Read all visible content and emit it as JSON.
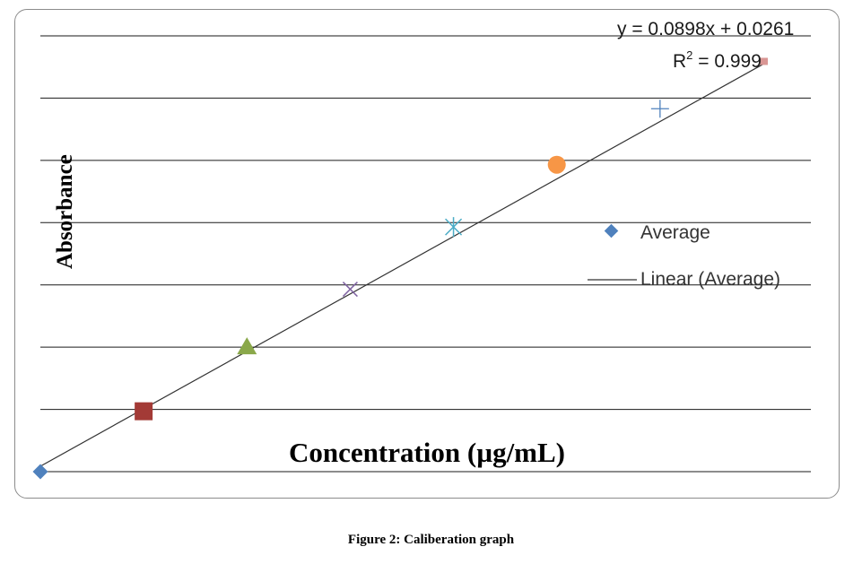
{
  "chart_data": {
    "type": "scatter",
    "xlabel": "Concentration (µg/mL)",
    "ylabel": "Absorbance",
    "grid": true,
    "legend_placement": "right",
    "series": [
      {
        "name": "Average",
        "x": [
          0,
          1,
          2,
          3,
          4,
          5,
          6,
          7
        ],
        "y": [
          0.0,
          0.097,
          0.2,
          0.293,
          0.393,
          0.493,
          0.583,
          0.659
        ],
        "colors": [
          "#4f81bd",
          "#a33a36",
          "#8aa84a",
          "#8064a2",
          "#4bacc6",
          "#f79646",
          "#4f81bd",
          "#d99694"
        ]
      }
    ],
    "trendline": {
      "name": "Linear (Average)",
      "equation": "y = 0.0898x + 0.0261",
      "r2_label": "R",
      "r2_sup": "2",
      "r2_value": " = 0.999",
      "slope": 0.0898,
      "intercept": 0.0261
    },
    "ylim": [
      0,
      0.7
    ],
    "xlim": [
      0,
      7
    ],
    "gridline_count": 8
  },
  "caption": "Figure 2: Caliberation graph"
}
